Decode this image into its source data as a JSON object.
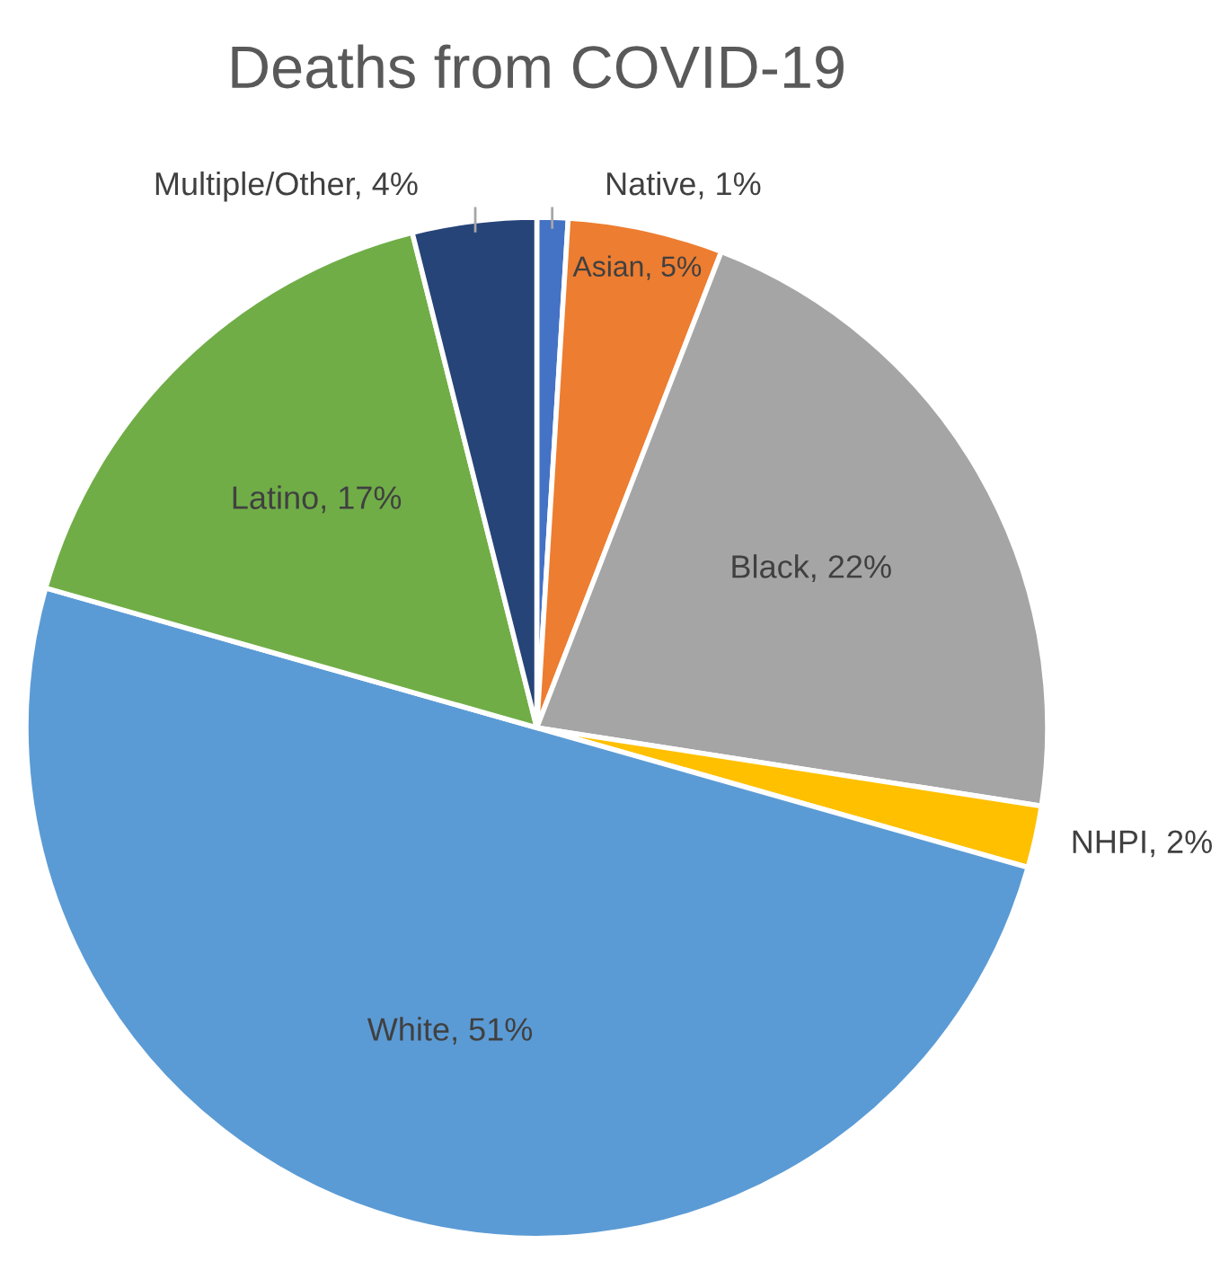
{
  "chart_data": {
    "type": "pie",
    "title": "Deaths from COVID-19",
    "categories": [
      "Native",
      "Asian",
      "Black",
      "NHPI",
      "White",
      "Latino",
      "Multiple/Other"
    ],
    "values": [
      1,
      5,
      22,
      2,
      51,
      17,
      4
    ],
    "value_labels": [
      "1%",
      "5%",
      "22%",
      "2%",
      "51%",
      "17%",
      "4%"
    ],
    "colors": [
      "#4472c4",
      "#ed7d31",
      "#a5a5a5",
      "#ffc000",
      "#5b9bd5",
      "#70ad47",
      "#264478"
    ],
    "legend": false
  }
}
